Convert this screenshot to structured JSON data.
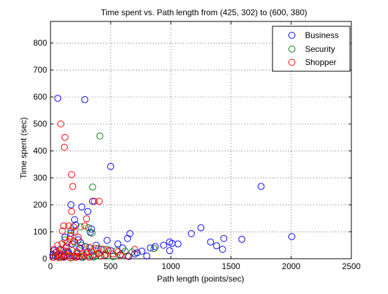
{
  "chart_data": {
    "type": "scatter",
    "title": "Time spent vs. Path length from (425, 302) to (600, 380)",
    "xlabel": "Path length (points/sec)",
    "ylabel": "Time spent (sec)",
    "xlim": [
      0,
      2500
    ],
    "ylim": [
      0,
      880
    ],
    "xticks": [
      0,
      500,
      1000,
      1500,
      2000,
      2500
    ],
    "yticks": [
      0,
      100,
      200,
      300,
      400,
      500,
      600,
      700,
      800
    ],
    "grid": true,
    "legend_position": "top-right",
    "marker": "open-circle",
    "series": [
      {
        "name": "Business",
        "color": "#0000ff",
        "points": [
          [
            60,
            595
          ],
          [
            285,
            590
          ],
          [
            500,
            342
          ],
          [
            1750,
            268
          ],
          [
            2005,
            82
          ],
          [
            1250,
            115
          ],
          [
            1170,
            93
          ],
          [
            1330,
            62
          ],
          [
            1380,
            48
          ],
          [
            1440,
            75
          ],
          [
            1590,
            72
          ],
          [
            1010,
            57
          ],
          [
            1060,
            55
          ],
          [
            990,
            62
          ],
          [
            1430,
            35
          ],
          [
            990,
            30
          ],
          [
            830,
            40
          ],
          [
            870,
            45
          ],
          [
            940,
            50
          ],
          [
            660,
            93
          ],
          [
            640,
            75
          ],
          [
            470,
            68
          ],
          [
            560,
            55
          ],
          [
            600,
            40
          ],
          [
            170,
            200
          ],
          [
            260,
            192
          ],
          [
            310,
            175
          ],
          [
            350,
            213
          ],
          [
            200,
            145
          ],
          [
            210,
            125
          ],
          [
            340,
            110
          ],
          [
            330,
            98
          ],
          [
            170,
            95
          ],
          [
            120,
            80
          ],
          [
            30,
            30
          ],
          [
            80,
            35
          ],
          [
            140,
            28
          ],
          [
            230,
            70
          ],
          [
            250,
            60
          ],
          [
            180,
            55
          ],
          [
            290,
            45
          ],
          [
            40,
            22
          ],
          [
            20,
            15
          ],
          [
            95,
            12
          ],
          [
            150,
            18
          ],
          [
            220,
            8
          ],
          [
            310,
            25
          ],
          [
            400,
            20
          ],
          [
            420,
            35
          ],
          [
            500,
            30
          ],
          [
            720,
            22
          ],
          [
            760,
            28
          ],
          [
            25,
            5
          ],
          [
            60,
            8
          ],
          [
            110,
            5
          ],
          [
            190,
            10
          ],
          [
            260,
            6
          ],
          [
            350,
            10
          ],
          [
            450,
            12
          ],
          [
            580,
            15
          ],
          [
            650,
            8
          ],
          [
            700,
            18
          ],
          [
            800,
            10
          ],
          [
            130,
            40
          ],
          [
            240,
            38
          ],
          [
            380,
            50
          ]
        ]
      },
      {
        "name": "Security",
        "color": "#008000",
        "points": [
          [
            410,
            455
          ],
          [
            350,
            266
          ],
          [
            315,
            115
          ],
          [
            345,
            95
          ],
          [
            250,
            118
          ],
          [
            170,
            105
          ],
          [
            120,
            70
          ],
          [
            200,
            60
          ],
          [
            260,
            50
          ],
          [
            330,
            40
          ],
          [
            400,
            38
          ],
          [
            470,
            35
          ],
          [
            550,
            30
          ],
          [
            620,
            28
          ],
          [
            680,
            25
          ],
          [
            860,
            38
          ],
          [
            90,
            30
          ],
          [
            150,
            25
          ],
          [
            230,
            20
          ],
          [
            300,
            15
          ],
          [
            380,
            12
          ],
          [
            450,
            10
          ],
          [
            520,
            8
          ],
          [
            40,
            10
          ],
          [
            70,
            5
          ],
          [
            110,
            8
          ],
          [
            180,
            5
          ],
          [
            270,
            5
          ],
          [
            360,
            6
          ],
          [
            600,
            12
          ]
        ]
      },
      {
        "name": "Shopper",
        "color": "#ff0000",
        "points": [
          [
            85,
            500
          ],
          [
            120,
            450
          ],
          [
            115,
            413
          ],
          [
            175,
            312
          ],
          [
            185,
            268
          ],
          [
            405,
            213
          ],
          [
            365,
            213
          ],
          [
            175,
            175
          ],
          [
            300,
            148
          ],
          [
            110,
            122
          ],
          [
            150,
            122
          ],
          [
            190,
            118
          ],
          [
            285,
            122
          ],
          [
            100,
            103
          ],
          [
            200,
            100
          ],
          [
            165,
            85
          ],
          [
            230,
            80
          ],
          [
            160,
            72
          ],
          [
            195,
            65
          ],
          [
            140,
            60
          ],
          [
            95,
            55
          ],
          [
            60,
            50
          ],
          [
            130,
            45
          ],
          [
            250,
            40
          ],
          [
            320,
            42
          ],
          [
            380,
            38
          ],
          [
            440,
            35
          ],
          [
            480,
            30
          ],
          [
            560,
            25
          ],
          [
            700,
            35
          ],
          [
            30,
            35
          ],
          [
            50,
            25
          ],
          [
            80,
            20
          ],
          [
            120,
            15
          ],
          [
            160,
            12
          ],
          [
            200,
            10
          ],
          [
            240,
            8
          ],
          [
            280,
            12
          ],
          [
            320,
            6
          ],
          [
            360,
            15
          ],
          [
            420,
            10
          ],
          [
            20,
            5
          ],
          [
            45,
            8
          ],
          [
            75,
            4
          ],
          [
            105,
            6
          ],
          [
            135,
            10
          ],
          [
            165,
            3
          ],
          [
            210,
            5
          ],
          [
            260,
            18
          ],
          [
            300,
            22
          ],
          [
            340,
            28
          ],
          [
            400,
            20
          ],
          [
            460,
            15
          ],
          [
            520,
            18
          ],
          [
            580,
            12
          ],
          [
            640,
            10
          ],
          [
            180,
            30
          ],
          [
            220,
            25
          ],
          [
            110,
            30
          ],
          [
            70,
            15
          ]
        ]
      }
    ]
  }
}
